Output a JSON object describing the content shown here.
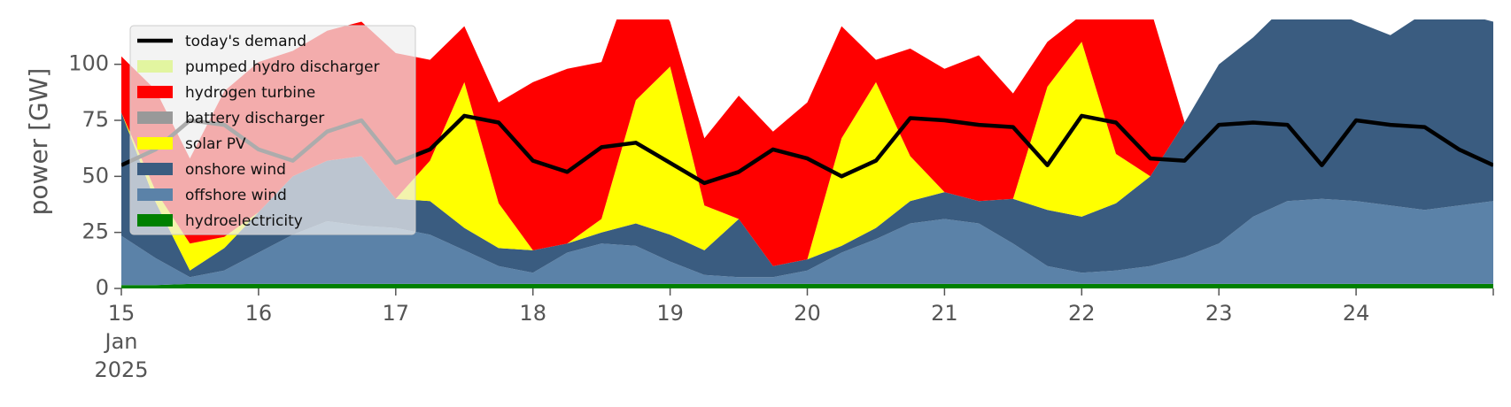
{
  "chart_data": {
    "type": "area",
    "ylabel": "power [GW]",
    "ylim": [
      0,
      120
    ],
    "yticks": [
      0,
      25,
      50,
      75,
      100
    ],
    "x_start": "2025-01-15 00:00",
    "x_end": "2025-01-25 00:00",
    "xticks": [
      {
        "label": "15",
        "sublabels": [
          "Jan",
          "2025"
        ]
      },
      {
        "label": "16"
      },
      {
        "label": "17"
      },
      {
        "label": "18"
      },
      {
        "label": "19"
      },
      {
        "label": "20"
      },
      {
        "label": "21"
      },
      {
        "label": "22"
      },
      {
        "label": "23"
      },
      {
        "label": "24"
      }
    ],
    "x_hours": [
      0,
      6,
      12,
      18,
      24,
      30,
      36,
      42,
      48,
      54,
      60,
      66,
      72,
      78,
      84,
      90,
      96,
      102,
      108,
      114,
      120,
      126,
      132,
      138,
      144,
      150,
      156,
      162,
      168,
      174,
      180,
      186,
      192,
      198,
      204,
      210,
      216,
      222,
      228,
      234,
      240
    ],
    "grid": false,
    "legend_position": "upper-left",
    "series": [
      {
        "name": "hydroelectricity",
        "color": "#008000",
        "values": [
          1.5,
          1.5,
          2,
          2,
          2,
          2,
          2,
          2,
          2,
          2,
          2,
          2,
          2,
          2,
          2,
          2,
          2,
          2,
          2,
          2,
          2,
          2,
          2,
          2,
          2,
          2,
          2,
          2,
          2,
          2,
          2,
          2,
          2,
          2,
          2,
          2,
          2,
          2,
          2,
          2,
          2
        ]
      },
      {
        "name": "offshore wind",
        "color": "#5b82a8",
        "values": [
          22,
          12,
          3,
          6,
          14,
          22,
          28,
          26,
          25,
          22,
          15,
          8,
          5,
          14,
          18,
          17,
          10,
          4,
          3,
          3,
          6,
          14,
          20,
          27,
          29,
          27,
          18,
          8,
          5,
          6,
          8,
          12,
          18,
          30,
          37,
          38,
          37,
          35,
          33,
          35,
          37
        ]
      },
      {
        "name": "onshore wind",
        "color": "#3a5c80",
        "values": [
          55,
          25,
          3,
          10,
          18,
          26,
          27,
          31,
          13,
          15,
          10,
          8,
          10,
          4,
          5,
          10,
          12,
          11,
          26,
          5,
          5,
          3,
          5,
          10,
          12,
          10,
          20,
          25,
          25,
          30,
          40,
          60,
          80,
          80,
          88,
          86,
          80,
          76,
          88,
          86,
          80
        ]
      },
      {
        "name": "solar PV",
        "color": "#ffff00",
        "values": [
          0,
          5,
          12,
          5,
          0,
          0,
          0,
          0,
          0,
          18,
          65,
          20,
          0,
          0,
          6,
          55,
          75,
          20,
          0,
          0,
          0,
          48,
          65,
          20,
          0,
          0,
          0,
          55,
          78,
          22,
          0,
          0,
          0,
          0,
          0,
          0,
          0,
          0,
          0,
          0,
          0
        ]
      },
      {
        "name": "battery discharger",
        "color": "#999999",
        "values": [
          0,
          0,
          0,
          0,
          0,
          0,
          0,
          0,
          0,
          0,
          0,
          0,
          0,
          0,
          0,
          0,
          0,
          0,
          0,
          0,
          0,
          0,
          0,
          0,
          0,
          0,
          0,
          0,
          0,
          0,
          0,
          0,
          0,
          0,
          0,
          0,
          0,
          0,
          0,
          0,
          0
        ]
      },
      {
        "name": "hydrogen turbine",
        "color": "#ff0000",
        "values": [
          25,
          45,
          38,
          65,
          67,
          56,
          58,
          60,
          65,
          45,
          25,
          45,
          75,
          78,
          70,
          60,
          20,
          30,
          55,
          60,
          70,
          50,
          10,
          48,
          55,
          65,
          47,
          20,
          12,
          60,
          75,
          0,
          0,
          0,
          0,
          0,
          0,
          0,
          0,
          0,
          0
        ]
      },
      {
        "name": "pumped hydro discharger",
        "color": "#e2f5a0",
        "values": [
          0,
          0,
          0,
          0,
          0,
          0,
          0,
          0,
          0,
          0,
          0,
          0,
          0,
          0,
          0,
          0,
          0,
          0,
          0,
          0,
          0,
          0,
          0,
          0,
          0,
          0,
          0,
          0,
          0,
          0,
          0,
          0,
          0,
          0,
          0,
          0,
          0,
          0,
          0,
          0,
          0
        ]
      }
    ],
    "line_series": {
      "name": "today's demand",
      "color": "#000000",
      "values": [
        55,
        62,
        75,
        73,
        62,
        57,
        70,
        75,
        56,
        62,
        77,
        74,
        57,
        52,
        63,
        65,
        56,
        47,
        52,
        62,
        58,
        50,
        57,
        76,
        75,
        73,
        72,
        55,
        77,
        74,
        58,
        57,
        73,
        74,
        73,
        55,
        75,
        73,
        72,
        62,
        55
      ]
    },
    "legend_order": [
      "today's demand",
      "pumped hydro discharger",
      "hydrogen turbine",
      "battery discharger",
      "solar PV",
      "onshore wind",
      "offshore wind",
      "hydroelectricity"
    ]
  }
}
